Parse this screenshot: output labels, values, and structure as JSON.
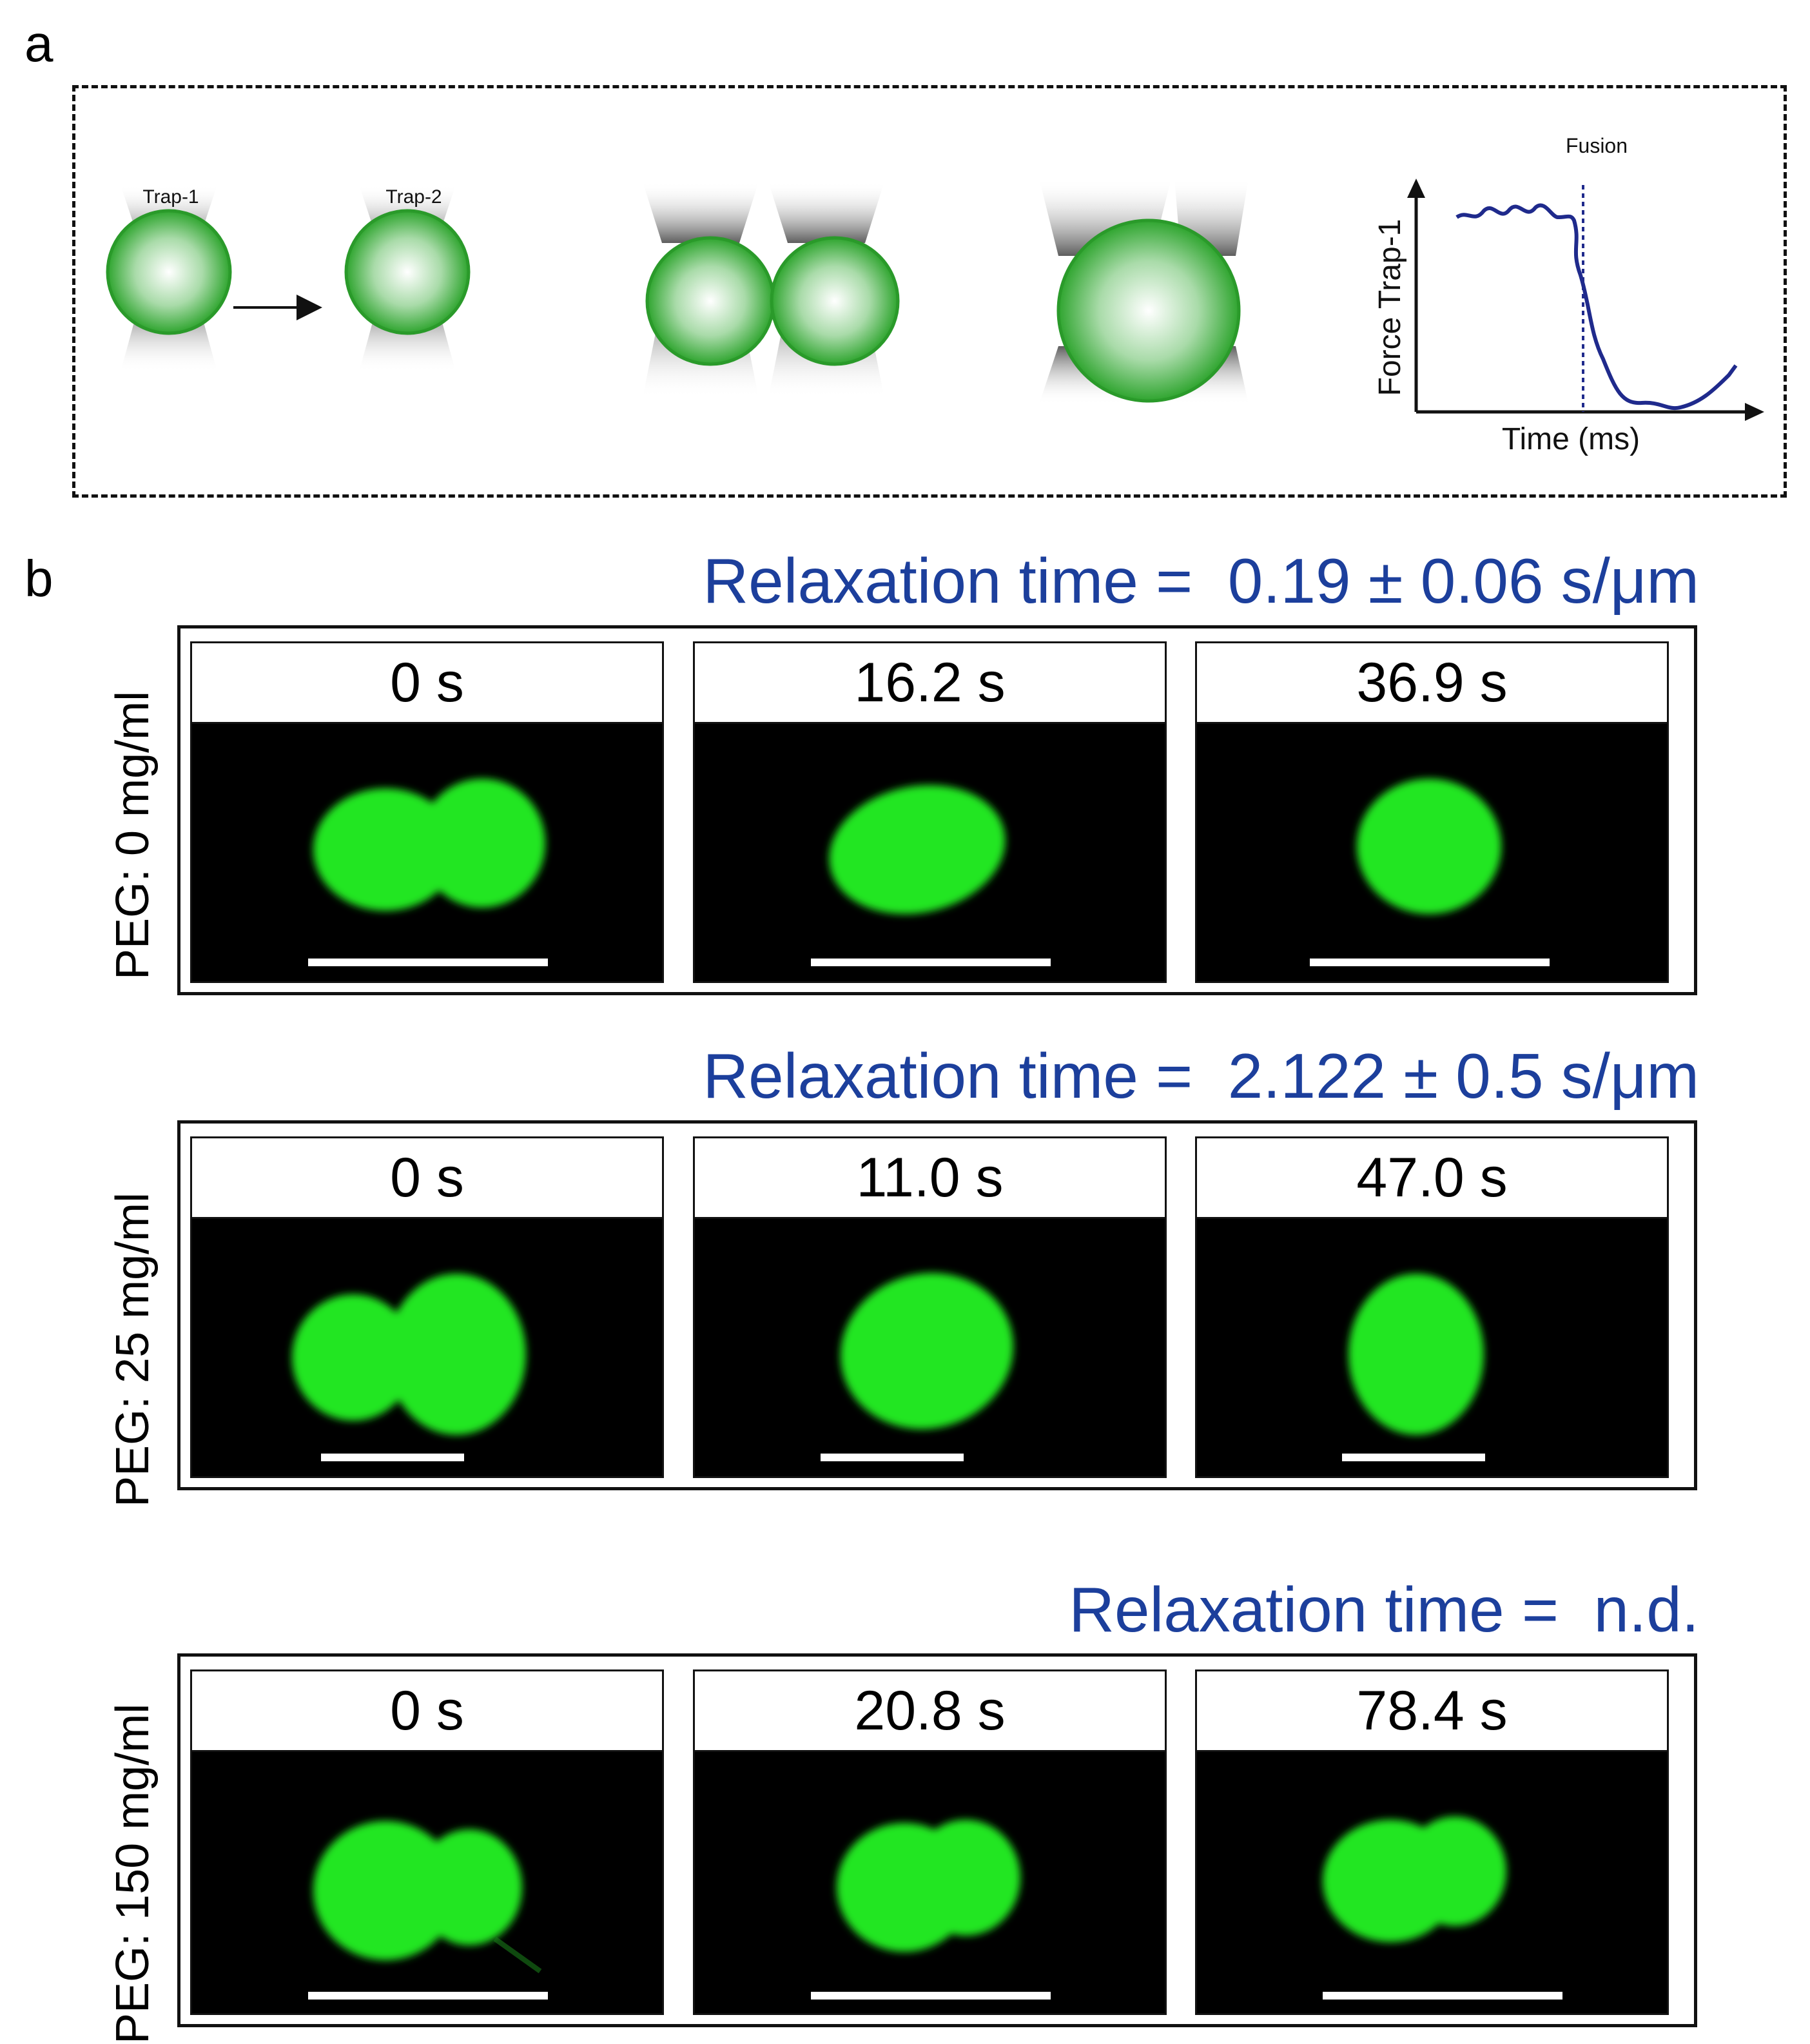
{
  "panel_a": {
    "letter": "a",
    "trap1_label": "Trap-1",
    "trap2_label": "Trap-2",
    "fusion_label": "Fusion",
    "y_axis_label": "Force Trap-1",
    "x_axis_label": "Time (ms)",
    "droplet_color": "#2fa52f",
    "trace_color": "#1f2a8c"
  },
  "panel_b": {
    "letter": "b",
    "rows": [
      {
        "peg_label": "PEG: 0 mg/ml",
        "relaxation": "Relaxation time =  0.19 ± 0.06 s/μm",
        "frames": [
          {
            "time": "0 s",
            "shape": "two-droplets"
          },
          {
            "time": "16.2 s",
            "shape": "elongated"
          },
          {
            "time": "36.9 s",
            "shape": "round"
          }
        ]
      },
      {
        "peg_label": "PEG: 25 mg/ml",
        "relaxation": "Relaxation time =  2.122 ± 0.5 s/μm",
        "frames": [
          {
            "time": "0 s",
            "shape": "two-droplets"
          },
          {
            "time": "11.0 s",
            "shape": "elongated"
          },
          {
            "time": "47.0 s",
            "shape": "round"
          }
        ]
      },
      {
        "peg_label": "PEG: 150 mg/ml",
        "relaxation": "Relaxation time =  n.d.",
        "frames": [
          {
            "time": "0 s",
            "shape": "two-droplets"
          },
          {
            "time": "20.8 s",
            "shape": "two-droplets"
          },
          {
            "time": "78.4 s",
            "shape": "two-droplets"
          }
        ]
      }
    ],
    "fluorescence_color": "#22e622",
    "relaxation_color": "#1c3f9c"
  }
}
